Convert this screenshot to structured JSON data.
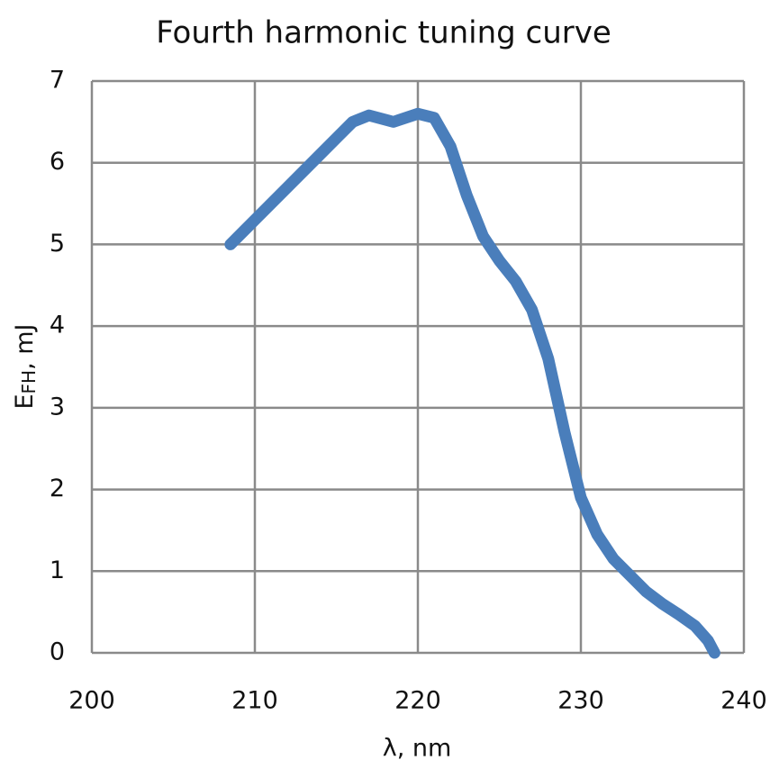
{
  "chart_data": {
    "type": "line",
    "title": "Fourth harmonic tuning curve",
    "x_label": "λ, nm",
    "y_label_parts": [
      "E",
      "FH",
      ", mJ"
    ],
    "x": [
      208.5,
      210,
      212,
      214,
      216,
      217,
      218.5,
      220,
      221,
      222,
      223,
      224,
      225,
      226,
      227,
      228,
      229,
      230,
      231,
      232,
      233,
      234,
      235,
      236,
      237,
      237.8,
      238.2
    ],
    "series": [
      {
        "name": "Fourth harmonic",
        "color": "#4a7ebb",
        "values": [
          5.0,
          5.3,
          5.7,
          6.1,
          6.5,
          6.58,
          6.5,
          6.6,
          6.55,
          6.2,
          5.6,
          5.1,
          4.8,
          4.55,
          4.2,
          3.6,
          2.7,
          1.9,
          1.45,
          1.15,
          0.95,
          0.75,
          0.6,
          0.47,
          0.33,
          0.15,
          0
        ]
      }
    ],
    "xlim": [
      200,
      240
    ],
    "xticks": [
      200,
      210,
      220,
      230,
      240
    ],
    "ylim": [
      0,
      7
    ],
    "yticks": [
      0,
      1,
      2,
      3,
      4,
      5,
      6,
      7
    ],
    "grid": true
  }
}
